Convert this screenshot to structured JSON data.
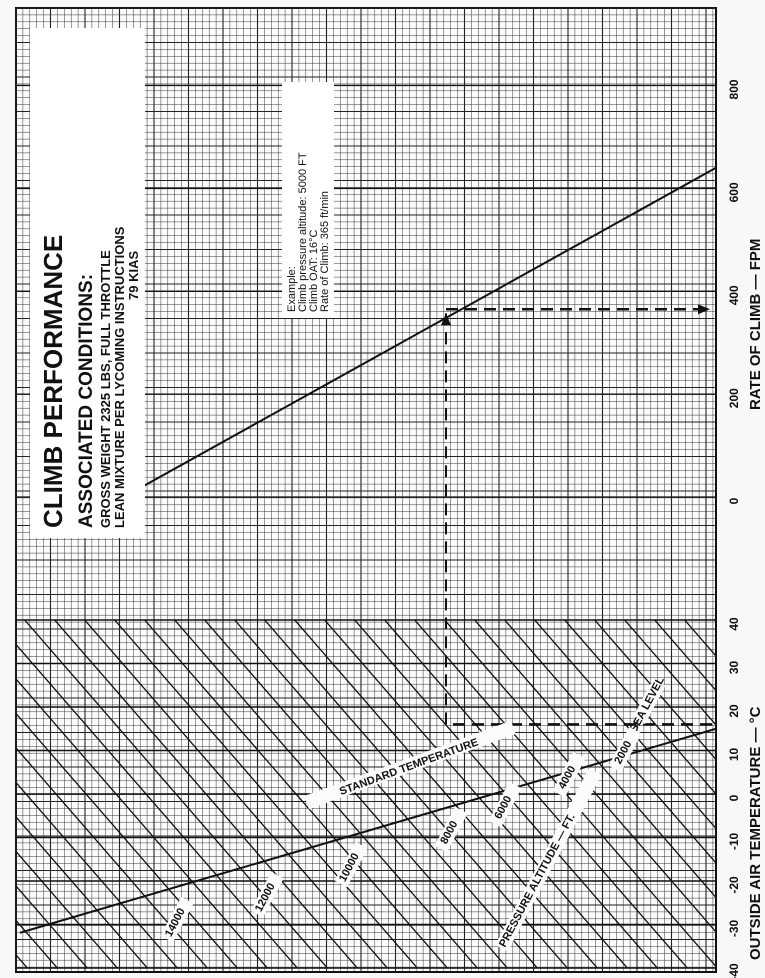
{
  "chart_data": {
    "type": "line",
    "title": "CLIMB PERFORMANCE",
    "subtitle": "ASSOCIATED CONDITIONS:",
    "conditions": [
      "GROSS WEIGHT 2325 LBS, FULL THROTTLE",
      "LEAN MIXTURE PER LYCOMING INSTRUCTIONS",
      "79 KIAS"
    ],
    "example": {
      "heading": "Example:",
      "lines": [
        "Climb pressure altitude:  5000 FT",
        "Climb OAT:  16°C",
        "Rate of Climb: 365 ft/min"
      ],
      "pressure_altitude_ft": 5000,
      "oat_c": 16,
      "rate_of_climb_fpm": 365
    },
    "oat_axis": {
      "label": "OUTSIDE AIR TEMPERATURE — °C",
      "range": [
        -40,
        40
      ],
      "ticks": [
        "-40",
        "-30",
        "-20",
        "-10",
        "0",
        "10",
        "20",
        "30",
        "40"
      ]
    },
    "roc_axis": {
      "label": "RATE OF CLIMB — FPM",
      "range": [
        -200,
        900
      ],
      "ticks": [
        "0",
        "200",
        "400",
        "600",
        "800"
      ]
    },
    "pressure_altitude_label": "PRESSURE ALTITUDE — FT.",
    "standard_temperature_label": "STANDARD TEMPERATURE",
    "altitude_lines": [
      {
        "label": "SEA LEVEL",
        "altitude_ft": 0
      },
      {
        "label": "2000",
        "altitude_ft": 2000
      },
      {
        "label": "4000",
        "altitude_ft": 4000
      },
      {
        "label": "6000",
        "altitude_ft": 6000
      },
      {
        "label": "8000",
        "altitude_ft": 8000
      },
      {
        "label": "10000",
        "altitude_ft": 10000
      },
      {
        "label": "12000",
        "altitude_ft": 12000
      },
      {
        "label": "14000",
        "altitude_ft": 14000
      }
    ],
    "standard_temperature": {
      "x_oat_c": [
        -25,
        15
      ],
      "altitude_ft": [
        14000,
        0
      ]
    },
    "roc_reference_line": {
      "x_roc_fpm": [
        0,
        640
      ],
      "reference": [
        0,
        1
      ]
    },
    "grid": true
  }
}
